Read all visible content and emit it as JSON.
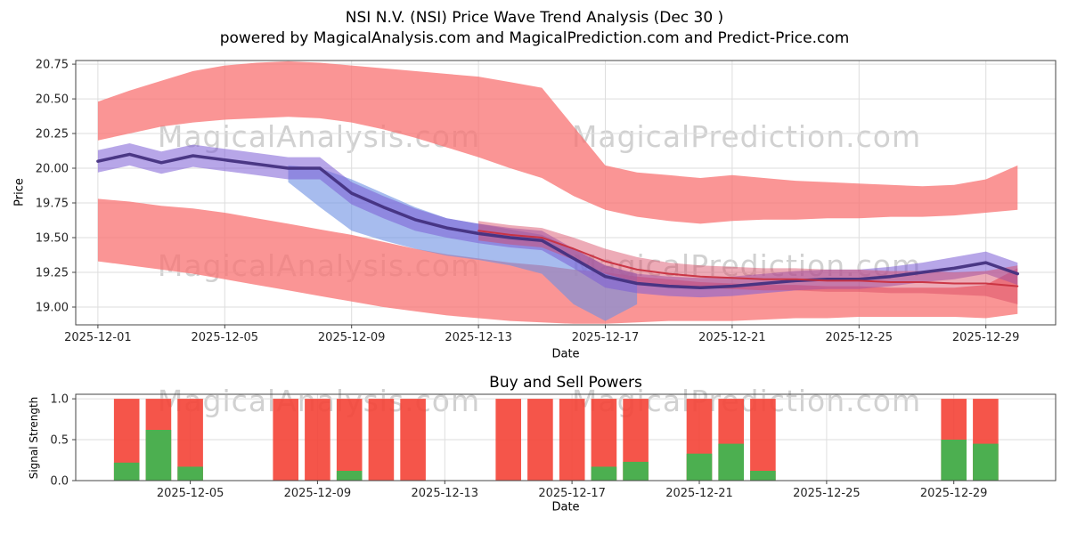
{
  "header": {
    "title": "NSI N.V. (NSI) Price Wave Trend Analysis (Dec 30 )",
    "subtitle": "powered by MagicalAnalysis.com and MagicalPrediction.com and Predict-Price.com"
  },
  "watermarks": {
    "left": "MagicalAnalysis.com",
    "right": "MagicalPrediction.com"
  },
  "colors": {
    "band_red": "#f87171",
    "band_blue": "#6d8fe3",
    "band_purple": "#7c5cd6",
    "band_dark_red": "#d64560",
    "line_purple": "#43307f",
    "line_red": "#c9303f",
    "bar_red": "#f44336",
    "bar_green": "#4caf50",
    "grid": "#dedede",
    "axis": "#444444",
    "watermark": "#c9c9c9"
  },
  "chart_data": [
    {
      "type": "area",
      "title": "",
      "xlabel": "Date",
      "ylabel": "Price",
      "date_range": [
        "2025-12-01",
        "2025-12-30"
      ],
      "xlim_days": [
        -0.7,
        30.2
      ],
      "ylim": [
        18.872,
        20.776
      ],
      "grid": true,
      "y_ticks": [
        "19.00",
        "19.25",
        "19.50",
        "19.75",
        "20.00",
        "20.25",
        "20.50",
        "20.75"
      ],
      "x_ticks": [
        {
          "day": 0,
          "label": "2025-12-01"
        },
        {
          "day": 4,
          "label": "2025-12-05"
        },
        {
          "day": 8,
          "label": "2025-12-09"
        },
        {
          "day": 12,
          "label": "2025-12-13"
        },
        {
          "day": 16,
          "label": "2025-12-17"
        },
        {
          "day": 20,
          "label": "2025-12-21"
        },
        {
          "day": 24,
          "label": "2025-12-25"
        },
        {
          "day": 28,
          "label": "2025-12-29"
        }
      ],
      "bands": [
        {
          "name": "upper-envelope-band",
          "color_key": "band_red",
          "opacity": 0.75,
          "start": 0,
          "top": [
            20.48,
            20.56,
            20.63,
            20.7,
            20.74,
            20.76,
            20.77,
            20.76,
            20.74,
            20.72,
            20.7,
            20.68,
            20.66,
            20.62,
            20.58,
            20.3,
            20.02,
            19.97,
            19.95,
            19.93,
            19.95,
            19.93,
            19.91,
            19.9,
            19.89,
            19.88,
            19.87,
            19.88,
            19.92,
            20.02
          ],
          "bottom": [
            20.2,
            20.25,
            20.3,
            20.33,
            20.35,
            20.36,
            20.37,
            20.36,
            20.33,
            20.28,
            20.22,
            20.15,
            20.08,
            20.0,
            19.93,
            19.8,
            19.7,
            19.65,
            19.62,
            19.6,
            19.62,
            19.63,
            19.63,
            19.64,
            19.64,
            19.65,
            19.65,
            19.66,
            19.68,
            19.7
          ]
        },
        {
          "name": "lower-envelope-band",
          "color_key": "band_red",
          "opacity": 0.75,
          "start": 0,
          "top": [
            19.78,
            19.76,
            19.73,
            19.71,
            19.68,
            19.64,
            19.6,
            19.56,
            19.52,
            19.47,
            19.42,
            19.38,
            19.35,
            19.32,
            19.3,
            19.27,
            19.25,
            19.22,
            19.2,
            19.18,
            19.17,
            19.16,
            19.16,
            19.15,
            19.15,
            19.14,
            19.14,
            19.14,
            19.16,
            19.28
          ],
          "bottom": [
            19.33,
            19.3,
            19.27,
            19.24,
            19.2,
            19.16,
            19.12,
            19.08,
            19.04,
            19.0,
            18.97,
            18.94,
            18.92,
            18.9,
            18.89,
            18.88,
            18.88,
            18.89,
            18.9,
            18.9,
            18.9,
            18.91,
            18.92,
            18.92,
            18.93,
            18.93,
            18.93,
            18.93,
            18.92,
            18.95
          ]
        },
        {
          "name": "wave-band",
          "color_key": "band_blue",
          "opacity": 0.6,
          "start": 6,
          "top": [
            20.02,
            20.0,
            19.92,
            19.82,
            19.72,
            19.64,
            19.6,
            19.56,
            19.52,
            19.42,
            19.3,
            19.24
          ],
          "bottom": [
            19.9,
            19.72,
            19.55,
            19.48,
            19.42,
            19.37,
            19.34,
            19.3,
            19.24,
            19.02,
            18.9,
            19.02
          ]
        },
        {
          "name": "trend-band",
          "color_key": "band_purple",
          "opacity": 0.55,
          "start": 0,
          "top": [
            20.13,
            20.18,
            20.12,
            20.17,
            20.14,
            20.11,
            20.08,
            20.08,
            19.9,
            19.8,
            19.71,
            19.64,
            19.6,
            19.57,
            19.55,
            19.42,
            19.3,
            19.24,
            19.22,
            19.21,
            19.22,
            19.24,
            19.26,
            19.27,
            19.27,
            19.29,
            19.32,
            19.36,
            19.4,
            19.32
          ],
          "bottom": [
            19.97,
            20.02,
            19.96,
            20.01,
            19.98,
            19.95,
            19.92,
            19.92,
            19.74,
            19.64,
            19.55,
            19.5,
            19.46,
            19.43,
            19.41,
            19.28,
            19.14,
            19.1,
            19.08,
            19.07,
            19.08,
            19.1,
            19.12,
            19.13,
            19.13,
            19.15,
            19.18,
            19.2,
            19.24,
            19.16
          ]
        },
        {
          "name": "prediction-band",
          "color_key": "band_dark_red",
          "opacity": 0.45,
          "start": 12,
          "top": [
            19.62,
            19.59,
            19.57,
            19.5,
            19.42,
            19.36,
            19.32,
            19.3,
            19.29,
            19.28,
            19.28,
            19.27,
            19.27,
            19.26,
            19.26,
            19.25,
            19.26,
            19.3
          ],
          "bottom": [
            19.48,
            19.45,
            19.43,
            19.34,
            19.24,
            19.18,
            19.16,
            19.14,
            19.13,
            19.12,
            19.12,
            19.11,
            19.11,
            19.1,
            19.1,
            19.09,
            19.08,
            19.02
          ]
        }
      ],
      "series": [
        {
          "name": "price-trend-line",
          "color_key": "line_purple",
          "width": 3.5,
          "opacity": 0.95,
          "start": 0,
          "values": [
            20.05,
            20.1,
            20.04,
            20.09,
            20.06,
            20.03,
            20.0,
            20.0,
            19.82,
            19.72,
            19.63,
            19.57,
            19.53,
            19.5,
            19.48,
            19.35,
            19.22,
            19.17,
            19.15,
            19.14,
            19.15,
            19.17,
            19.19,
            19.2,
            19.2,
            19.22,
            19.25,
            19.28,
            19.32,
            19.24
          ]
        },
        {
          "name": "prediction-line",
          "color_key": "line_red",
          "width": 2,
          "opacity": 0.95,
          "start": 12,
          "values": [
            19.55,
            19.52,
            19.5,
            19.42,
            19.33,
            19.27,
            19.24,
            19.22,
            19.21,
            19.2,
            19.2,
            19.19,
            19.19,
            19.18,
            19.18,
            19.17,
            19.17,
            19.15
          ]
        }
      ]
    },
    {
      "type": "bar",
      "title": "Buy and Sell Powers",
      "xlabel": "Date",
      "ylabel": "Signal Strength",
      "xlim_days": [
        0.4,
        31.2
      ],
      "ylim": [
        0,
        1.055
      ],
      "grid": true,
      "bar_width_days": 0.8,
      "y_ticks": [
        "0.0",
        "0.5",
        "1.0"
      ],
      "x_ticks": [
        {
          "day": 4,
          "label": "2025-12-05"
        },
        {
          "day": 8,
          "label": "2025-12-09"
        },
        {
          "day": 12,
          "label": "2025-12-13"
        },
        {
          "day": 16,
          "label": "2025-12-17"
        },
        {
          "day": 20,
          "label": "2025-12-21"
        },
        {
          "day": 24,
          "label": "2025-12-25"
        },
        {
          "day": 28,
          "label": "2025-12-29"
        }
      ],
      "bars": [
        {
          "date": "2025-12-03",
          "day": 2,
          "sell": 1.0,
          "buy": 0.22
        },
        {
          "date": "2025-12-04",
          "day": 3,
          "sell": 1.0,
          "buy": 0.62
        },
        {
          "date": "2025-12-05",
          "day": 4,
          "sell": 1.0,
          "buy": 0.17
        },
        {
          "date": "2025-12-08",
          "day": 7,
          "sell": 1.0,
          "buy": 0.0
        },
        {
          "date": "2025-12-09",
          "day": 8,
          "sell": 1.0,
          "buy": 0.0
        },
        {
          "date": "2025-12-10",
          "day": 9,
          "sell": 1.0,
          "buy": 0.12
        },
        {
          "date": "2025-12-11",
          "day": 10,
          "sell": 1.0,
          "buy": 0.0
        },
        {
          "date": "2025-12-12",
          "day": 11,
          "sell": 1.0,
          "buy": 0.0
        },
        {
          "date": "2025-12-15",
          "day": 14,
          "sell": 1.0,
          "buy": 0.0
        },
        {
          "date": "2025-12-16",
          "day": 15,
          "sell": 1.0,
          "buy": 0.0
        },
        {
          "date": "2025-12-17",
          "day": 16,
          "sell": 1.0,
          "buy": 0.0
        },
        {
          "date": "2025-12-18",
          "day": 17,
          "sell": 1.0,
          "buy": 0.17
        },
        {
          "date": "2025-12-19",
          "day": 18,
          "sell": 1.0,
          "buy": 0.23
        },
        {
          "date": "2025-12-21",
          "day": 20,
          "sell": 1.0,
          "buy": 0.33
        },
        {
          "date": "2025-12-22",
          "day": 21,
          "sell": 1.0,
          "buy": 0.45
        },
        {
          "date": "2025-12-23",
          "day": 22,
          "sell": 1.0,
          "buy": 0.12
        },
        {
          "date": "2025-12-29",
          "day": 28,
          "sell": 1.0,
          "buy": 0.5
        },
        {
          "date": "2025-12-30",
          "day": 29,
          "sell": 1.0,
          "buy": 0.45
        }
      ]
    }
  ]
}
